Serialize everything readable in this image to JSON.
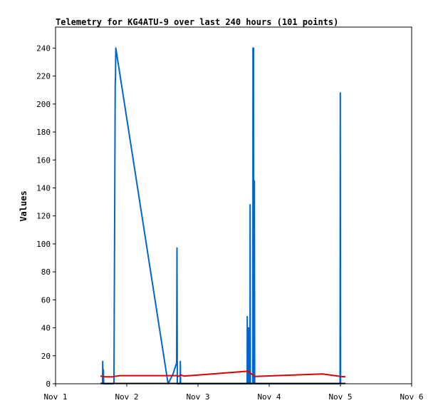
{
  "chart_data": {
    "type": "line",
    "title": "Telemetry for KG4ATU-9 over last 240 hours (101 points)",
    "xlabel": "",
    "ylabel": "Values",
    "xlim": [
      1,
      6
    ],
    "ylim": [
      0,
      255
    ],
    "x_ticks": [
      {
        "value": 1,
        "label": "Nov 1"
      },
      {
        "value": 2,
        "label": "Nov 2"
      },
      {
        "value": 3,
        "label": "Nov 3"
      },
      {
        "value": 4,
        "label": "Nov 4"
      },
      {
        "value": 5,
        "label": "Nov 5"
      },
      {
        "value": 6,
        "label": "Nov 6"
      }
    ],
    "y_ticks": [
      0,
      20,
      40,
      60,
      80,
      100,
      120,
      140,
      160,
      180,
      200,
      220,
      240
    ],
    "grid": false,
    "series": [
      {
        "color": "#0066cc",
        "points": [
          [
            1.66,
            0
          ],
          [
            1.662,
            16
          ],
          [
            1.665,
            2
          ],
          [
            1.668,
            0
          ],
          [
            1.672,
            10
          ],
          [
            1.676,
            0
          ],
          [
            1.82,
            0
          ],
          [
            1.822,
            25
          ],
          [
            1.826,
            72
          ],
          [
            1.83,
            120
          ],
          [
            1.834,
            168
          ],
          [
            1.838,
            215
          ],
          [
            1.842,
            220
          ],
          [
            1.846,
            240
          ],
          [
            2.58,
            0
          ],
          [
            2.65,
            7
          ],
          [
            2.7,
            15
          ],
          [
            2.705,
            97
          ],
          [
            2.71,
            0
          ],
          [
            2.75,
            0
          ],
          [
            2.752,
            16
          ],
          [
            2.756,
            0
          ],
          [
            3.69,
            0
          ],
          [
            3.692,
            48
          ],
          [
            3.696,
            0
          ],
          [
            3.71,
            0
          ],
          [
            3.712,
            40
          ],
          [
            3.716,
            0
          ],
          [
            3.73,
            0
          ],
          [
            3.732,
            128
          ],
          [
            3.736,
            0
          ],
          [
            3.77,
            0
          ],
          [
            3.772,
            240
          ],
          [
            3.78,
            240
          ],
          [
            3.784,
            0
          ],
          [
            3.79,
            0
          ],
          [
            3.792,
            145
          ],
          [
            3.796,
            0
          ],
          [
            4.995,
            0
          ],
          [
            4.998,
            208
          ],
          [
            5.002,
            0
          ]
        ]
      },
      {
        "color": "#dd0000",
        "points": [
          [
            1.63,
            5.5
          ],
          [
            1.7,
            5
          ],
          [
            1.8,
            5
          ],
          [
            1.9,
            5.8
          ],
          [
            2.5,
            5.8
          ],
          [
            2.7,
            5.8
          ],
          [
            2.72,
            5.2
          ],
          [
            2.76,
            6.3
          ],
          [
            2.8,
            5.5
          ],
          [
            3.2,
            7
          ],
          [
            3.7,
            9
          ],
          [
            3.8,
            5.2
          ],
          [
            4.2,
            6
          ],
          [
            4.75,
            7
          ],
          [
            5.0,
            5.2
          ],
          [
            5.07,
            5
          ]
        ]
      },
      {
        "color": "#000000",
        "points": [
          [
            1.63,
            0.2
          ],
          [
            5.07,
            0.2
          ]
        ]
      }
    ]
  }
}
